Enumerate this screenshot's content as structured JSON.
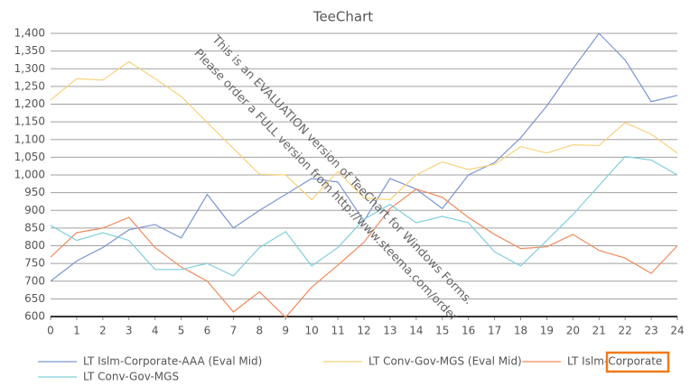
{
  "chart_data": {
    "type": "line",
    "title": "TeeChart",
    "watermark": [
      "This is an EVALUATION version of TeeChart for Windows Forms.",
      "Please order a FULL version from http://www.steema.com/order"
    ],
    "x": [
      0,
      1,
      2,
      3,
      4,
      5,
      6,
      7,
      8,
      9,
      10,
      11,
      12,
      13,
      14,
      15,
      16,
      17,
      18,
      19,
      20,
      21,
      22,
      23,
      24
    ],
    "xlim": [
      0,
      24
    ],
    "xticks": [
      0,
      1,
      2,
      3,
      4,
      5,
      6,
      7,
      8,
      9,
      10,
      11,
      12,
      13,
      14,
      15,
      16,
      17,
      18,
      19,
      20,
      21,
      22,
      23,
      24
    ],
    "ylim": [
      600,
      1400
    ],
    "yticks": [
      600,
      650,
      700,
      750,
      800,
      850,
      900,
      950,
      {
        "value": 1000,
        "label": "1,000"
      },
      {
        "value": 1050,
        "label": "1,050"
      },
      {
        "value": 1100,
        "label": "1,100"
      },
      {
        "value": 1150,
        "label": "1,150"
      },
      {
        "value": 1200,
        "label": "1,200"
      },
      {
        "value": 1250,
        "label": "1,250"
      },
      {
        "value": 1300,
        "label": "1,300"
      },
      {
        "value": 1350,
        "label": "1,350"
      },
      {
        "value": 1400,
        "label": "1,400"
      }
    ],
    "grid": true,
    "legend": "bottom",
    "series": [
      {
        "name": "LT Islm-Corporate-AAA (Eval Mid)",
        "color": "#7b96cf",
        "values": [
          700,
          757,
          795,
          845,
          860,
          822,
          945,
          850,
          900,
          945,
          990,
          980,
          870,
          990,
          960,
          905,
          1000,
          1035,
          1105,
          1195,
          1300,
          1400,
          1325,
          1207,
          1225
        ]
      },
      {
        "name": "LT Conv-Gov-MGS (Eval Mid)",
        "color": "#f7d27a",
        "values": [
          1212,
          1272,
          1268,
          1320,
          1272,
          1222,
          1148,
          1075,
          1002,
          1000,
          930,
          1010,
          935,
          930,
          1000,
          1037,
          1015,
          1030,
          1080,
          1062,
          1085,
          1083,
          1148,
          1115,
          1062
        ]
      },
      {
        "name": "LT Islm-Corporate",
        "color": "#f08a5a",
        "values": [
          768,
          837,
          850,
          880,
          795,
          740,
          700,
          613,
          670,
          598,
          683,
          745,
          810,
          905,
          960,
          937,
          880,
          832,
          792,
          797,
          832,
          787,
          765,
          722,
          800
        ]
      },
      {
        "name": "LT Conv-Gov-MGS",
        "color": "#7fcfdc",
        "values": [
          858,
          815,
          837,
          815,
          733,
          733,
          750,
          715,
          795,
          840,
          743,
          795,
          875,
          917,
          865,
          883,
          865,
          783,
          743,
          815,
          888,
          970,
          1052,
          1042,
          1000
        ]
      }
    ]
  }
}
